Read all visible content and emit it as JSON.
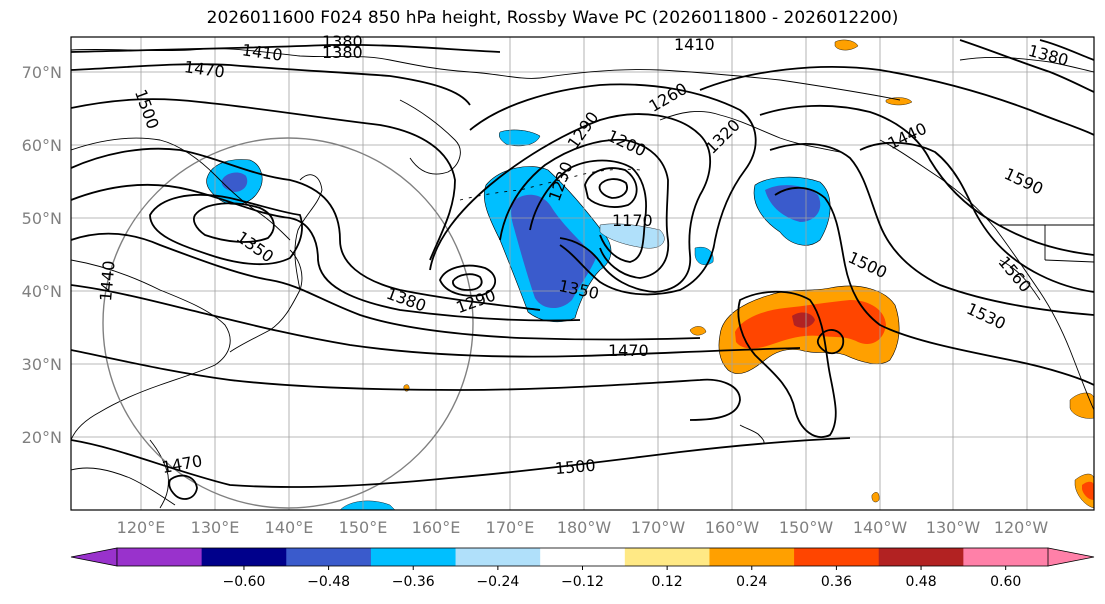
{
  "title": "2026011600 F024 850 hPa height, Rossby Wave PC (2026011800 - 2026012200)",
  "lat_ticks": [
    "70°N",
    "60°N",
    "50°N",
    "40°N",
    "30°N",
    "20°N"
  ],
  "lon_ticks": [
    "120°E",
    "130°E",
    "140°E",
    "150°E",
    "160°E",
    "170°E",
    "180°W",
    "170°W",
    "160°W",
    "150°W",
    "140°W",
    "130°W",
    "120°W"
  ],
  "contour_labels": [
    "1380",
    "1380",
    "1410",
    "1410",
    "1380",
    "1470",
    "1500",
    "1260",
    "1290",
    "1320",
    "1200",
    "1230",
    "1170",
    "1440",
    "1590",
    "1350",
    "1290",
    "1380",
    "1350",
    "1500",
    "1560",
    "1530",
    "1470",
    "1440",
    "1500",
    "1470"
  ],
  "colorbar": {
    "ticks": [
      "−0.60",
      "−0.48",
      "−0.36",
      "−0.24",
      "−0.12",
      "0.12",
      "0.24",
      "0.36",
      "0.48",
      "0.60"
    ],
    "colors": [
      "#9932cc",
      "#00008b",
      "#3a5bcc",
      "#00bfff",
      "#b0e0fa",
      "#ffffff",
      "#ffe985",
      "#ffa000",
      "#ff4500",
      "#b22222",
      "#ff80a8"
    ]
  }
}
